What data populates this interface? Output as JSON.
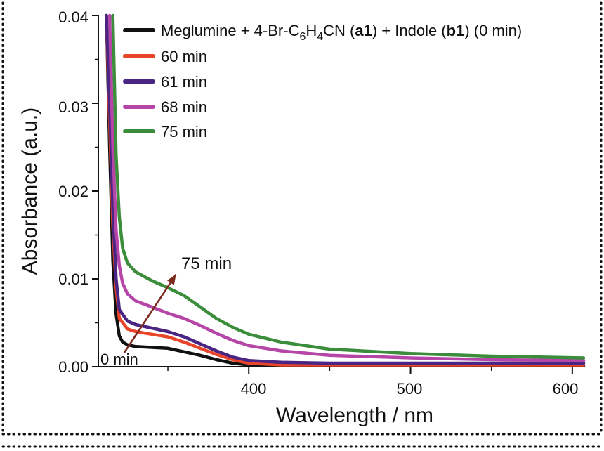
{
  "chart_data": {
    "type": "line",
    "xlabel": "Wavelength / nm",
    "ylabel": "Absorbance (a.u.)",
    "xlim": [
      307,
      607
    ],
    "ylim": [
      0,
      0.04
    ],
    "x_ticks": [
      400,
      500,
      600
    ],
    "x_tick_labels": [
      "400",
      "500",
      "600"
    ],
    "y_ticks": [
      0,
      0.01,
      0.02,
      0.03,
      0.04
    ],
    "y_tick_labels": [
      "0.00",
      "0.01",
      "0.02",
      "0.03",
      "0.04"
    ],
    "grid": false,
    "legend_position": "top-right",
    "series": [
      {
        "name": "Meglumine + 4-Br-C6H4CN (a1) + Indole (b1) (0 min)",
        "color": "#111111",
        "x": [
          312,
          314,
          316,
          318,
          320,
          322,
          325,
          330,
          340,
          350,
          360,
          370,
          380,
          390,
          400,
          420,
          450,
          500,
          550,
          607
        ],
        "y": [
          0.04,
          0.025,
          0.012,
          0.006,
          0.0035,
          0.0028,
          0.0025,
          0.0023,
          0.0022,
          0.0021,
          0.0017,
          0.0013,
          0.0008,
          0.0004,
          0.0002,
          0.0001,
          0.0001,
          0.0001,
          0.0001,
          0.0001
        ]
      },
      {
        "name": "60 min",
        "color": "#e8452a",
        "x": [
          312,
          314,
          316,
          318,
          320,
          325,
          330,
          340,
          350,
          360,
          370,
          380,
          390,
          400,
          420,
          450,
          500,
          550,
          607
        ],
        "y": [
          0.04,
          0.028,
          0.016,
          0.009,
          0.0055,
          0.0043,
          0.004,
          0.0037,
          0.0034,
          0.0028,
          0.0021,
          0.0014,
          0.0008,
          0.0004,
          0.0002,
          0.0002,
          0.0002,
          0.0002,
          0.0002
        ]
      },
      {
        "name": "61 min",
        "color": "#4b2583",
        "x": [
          312,
          314,
          316,
          318,
          320,
          325,
          330,
          340,
          350,
          360,
          370,
          380,
          390,
          400,
          420,
          450,
          500,
          550,
          607
        ],
        "y": [
          0.04,
          0.03,
          0.018,
          0.01,
          0.0065,
          0.0052,
          0.0048,
          0.0044,
          0.004,
          0.0034,
          0.0026,
          0.0018,
          0.0011,
          0.0007,
          0.0005,
          0.0004,
          0.0004,
          0.0004,
          0.0004
        ]
      },
      {
        "name": "68 min",
        "color": "#b546a8",
        "x": [
          314,
          316,
          318,
          320,
          322,
          325,
          330,
          340,
          350,
          360,
          370,
          380,
          390,
          400,
          420,
          450,
          500,
          550,
          607
        ],
        "y": [
          0.04,
          0.025,
          0.0155,
          0.0115,
          0.0095,
          0.0083,
          0.0075,
          0.0068,
          0.0061,
          0.0055,
          0.0047,
          0.0038,
          0.003,
          0.0024,
          0.0018,
          0.0013,
          0.001,
          0.0008,
          0.0007
        ]
      },
      {
        "name": "75 min",
        "color": "#3b8c3b",
        "x": [
          316,
          318,
          320,
          322,
          325,
          330,
          340,
          350,
          360,
          370,
          380,
          390,
          400,
          420,
          450,
          500,
          550,
          607
        ],
        "y": [
          0.04,
          0.024,
          0.017,
          0.0135,
          0.0118,
          0.0108,
          0.0098,
          0.009,
          0.0081,
          0.0068,
          0.0055,
          0.0045,
          0.0037,
          0.0028,
          0.002,
          0.0015,
          0.0012,
          0.001
        ]
      }
    ],
    "annotations": {
      "arrow_start_label": "0 min",
      "arrow_end_label": "75 min",
      "arrow_color": "#7a2a1c",
      "arrow_from": {
        "x": 323,
        "y": 0.0016
      },
      "arrow_to": {
        "x": 355,
        "y": 0.0105
      }
    }
  }
}
